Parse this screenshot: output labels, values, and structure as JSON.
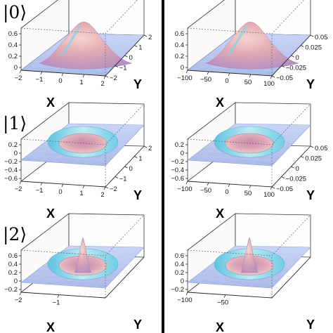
{
  "figure": {
    "divider_color": "#000000",
    "surface_color": "#b9c8f2",
    "peak_color": "#e8b6b8",
    "ring_color": "#7fd6ea",
    "panels": [
      {
        "id": "n0-left",
        "state_label": "|0⟩",
        "type": "gaussian",
        "z_ticks": [
          "0.6",
          "0.4",
          "0.2",
          "0"
        ],
        "x_label": "X",
        "x_ticks": [
          "−2",
          "−1",
          "0",
          "1",
          "2"
        ],
        "y_label": "Y",
        "y_ticks": [
          "2",
          "1",
          "0",
          "−1",
          "−2"
        ]
      },
      {
        "id": "n0-right",
        "state_label": "",
        "type": "gaussian",
        "z_ticks": [
          "0.6",
          "0.4",
          "0.2",
          "0"
        ],
        "x_label": "X",
        "x_ticks": [
          "−100",
          "−50",
          "0",
          "50",
          "100"
        ],
        "y_label": "Y",
        "y_ticks": [
          "0.05",
          "0.025",
          "0",
          "−0.025",
          "−0.05"
        ]
      },
      {
        "id": "n1-left",
        "state_label": "|1⟩",
        "type": "ring",
        "z_ticks": [
          "0.2",
          "0",
          "−0.2",
          "−0.4",
          "−0.6"
        ],
        "x_label": "X",
        "x_ticks": [
          "−2",
          "−1",
          "0",
          "1",
          "2"
        ],
        "y_label": "Y",
        "y_ticks": [
          "2",
          "1",
          "0",
          "−1",
          "−2"
        ]
      },
      {
        "id": "n1-right",
        "state_label": "",
        "type": "ring",
        "z_ticks": [
          "0.2",
          "0",
          "−0.2",
          "−0.4",
          "−0.6"
        ],
        "x_label": "X",
        "x_ticks": [
          "−100",
          "−50",
          "0",
          "50",
          "100"
        ],
        "y_label": "Y",
        "y_ticks": [
          "0.05",
          "0.025",
          "0",
          "−0.025",
          "−0.05"
        ]
      },
      {
        "id": "n2-left",
        "state_label": "|2⟩",
        "type": "ring-peak",
        "z_ticks": [
          "0.6",
          "0.4",
          "0.2",
          "0",
          "−0.2"
        ],
        "x_label": "X",
        "x_ticks": [
          "−2",
          "−1"
        ],
        "y_label": "Y",
        "y_ticks": []
      },
      {
        "id": "n2-right",
        "state_label": "",
        "type": "ring-peak",
        "z_ticks": [
          "0.6",
          "0.4",
          "0.2",
          "0",
          "−0.2"
        ],
        "x_label": "X",
        "x_ticks": [
          "−100",
          "−50"
        ],
        "y_label": "Y",
        "y_ticks": []
      }
    ]
  }
}
